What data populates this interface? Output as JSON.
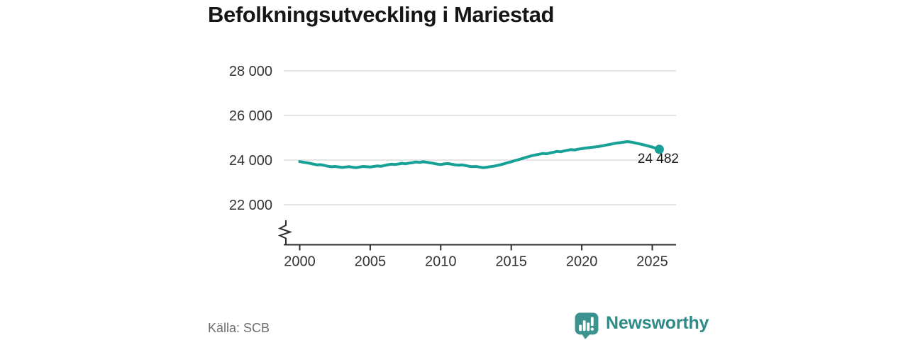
{
  "title": "Befolkningsutveckling i Mariestad",
  "source": "Källa: SCB",
  "branding": {
    "wordmark": "Newsworthy",
    "icon": "newsworthy-speech-bubble-bar-chart-icon",
    "wordmark_color": "#2e8b87",
    "icon_color": "#3a938e"
  },
  "colors": {
    "line": "#16a096",
    "grid": "#dcdcdc",
    "axis": "#2e2e2e",
    "tick_text": "#333333"
  },
  "chart_data": {
    "type": "line",
    "title": "Befolkningsutveckling i Mariestad",
    "xlabel": "",
    "ylabel": "",
    "grid": true,
    "legend": "none",
    "y_axis_break": true,
    "ylim": [
      22000,
      28000
    ],
    "y_ticks": [
      {
        "value": 28000,
        "label": "28 000"
      },
      {
        "value": 26000,
        "label": "26 000"
      },
      {
        "value": 24000,
        "label": "24 000"
      },
      {
        "value": 22000,
        "label": "22 000"
      }
    ],
    "x_ticks": [
      {
        "value": 2000,
        "label": "2000"
      },
      {
        "value": 2005,
        "label": "2005"
      },
      {
        "value": 2010,
        "label": "2010"
      },
      {
        "value": 2015,
        "label": "2015"
      },
      {
        "value": 2020,
        "label": "2020"
      },
      {
        "value": 2025,
        "label": "2025"
      }
    ],
    "last_value": 24482,
    "last_point_label": "24 482",
    "series": [
      {
        "name": "Befolkning",
        "x_start": 2000,
        "x_step": 0.25,
        "values": [
          23930,
          23905,
          23880,
          23850,
          23815,
          23785,
          23795,
          23760,
          23725,
          23700,
          23715,
          23695,
          23670,
          23690,
          23705,
          23680,
          23660,
          23690,
          23715,
          23700,
          23690,
          23715,
          23735,
          23720,
          23755,
          23790,
          23815,
          23800,
          23825,
          23855,
          23835,
          23865,
          23885,
          23915,
          23895,
          23925,
          23905,
          23875,
          23850,
          23820,
          23800,
          23830,
          23845,
          23815,
          23790,
          23770,
          23785,
          23755,
          23725,
          23705,
          23715,
          23690,
          23660,
          23680,
          23705,
          23725,
          23755,
          23795,
          23835,
          23885,
          23925,
          23975,
          24015,
          24065,
          24115,
          24160,
          24200,
          24235,
          24265,
          24300,
          24280,
          24320,
          24350,
          24390,
          24370,
          24410,
          24440,
          24470,
          24455,
          24490,
          24510,
          24535,
          24555,
          24575,
          24595,
          24615,
          24645,
          24675,
          24705,
          24735,
          24765,
          24785,
          24805,
          24825,
          24805,
          24775,
          24740,
          24705,
          24665,
          24625,
          24580,
          24530,
          24482
        ]
      }
    ]
  }
}
